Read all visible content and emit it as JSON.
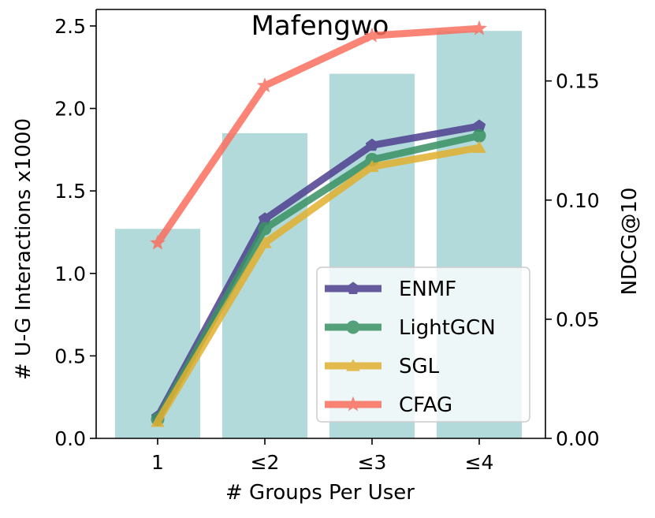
{
  "chart_data": {
    "type": "bar+line",
    "title": "Mafengwo",
    "xlabel": "# Groups Per User",
    "ylabel_left": "# U-G Interactions x1000",
    "ylabel_right": "NDCG@10",
    "categories": [
      "1",
      "≤2",
      "≤3",
      "≤4"
    ],
    "bars": {
      "name": "U-G Interactions",
      "values": [
        1.27,
        1.85,
        2.21,
        2.47
      ],
      "color": "#b2dadb"
    },
    "ylim_left": [
      0,
      2.6
    ],
    "yticks_left": [
      "0.0",
      "0.5",
      "1.0",
      "1.5",
      "2.0",
      "2.5"
    ],
    "ylim_right": [
      0,
      0.18
    ],
    "yticks_right": [
      "0.00",
      "0.05",
      "0.10",
      "0.15"
    ],
    "series": [
      {
        "name": "ENMF",
        "values": [
          0.009,
          0.092,
          0.123,
          0.131
        ],
        "color": "#4f3f8f",
        "marker": "pentagon"
      },
      {
        "name": "LightGCN",
        "values": [
          0.008,
          0.088,
          0.117,
          0.127
        ],
        "color": "#3a9163",
        "marker": "circle"
      },
      {
        "name": "SGL",
        "values": [
          0.007,
          0.082,
          0.114,
          0.122
        ],
        "color": "#e2b030",
        "marker": "triangle"
      },
      {
        "name": "CFAG",
        "values": [
          0.082,
          0.148,
          0.169,
          0.172
        ],
        "color": "#fa6f5f",
        "marker": "star"
      }
    ],
    "legend_position": "lower-right",
    "grid": false
  }
}
